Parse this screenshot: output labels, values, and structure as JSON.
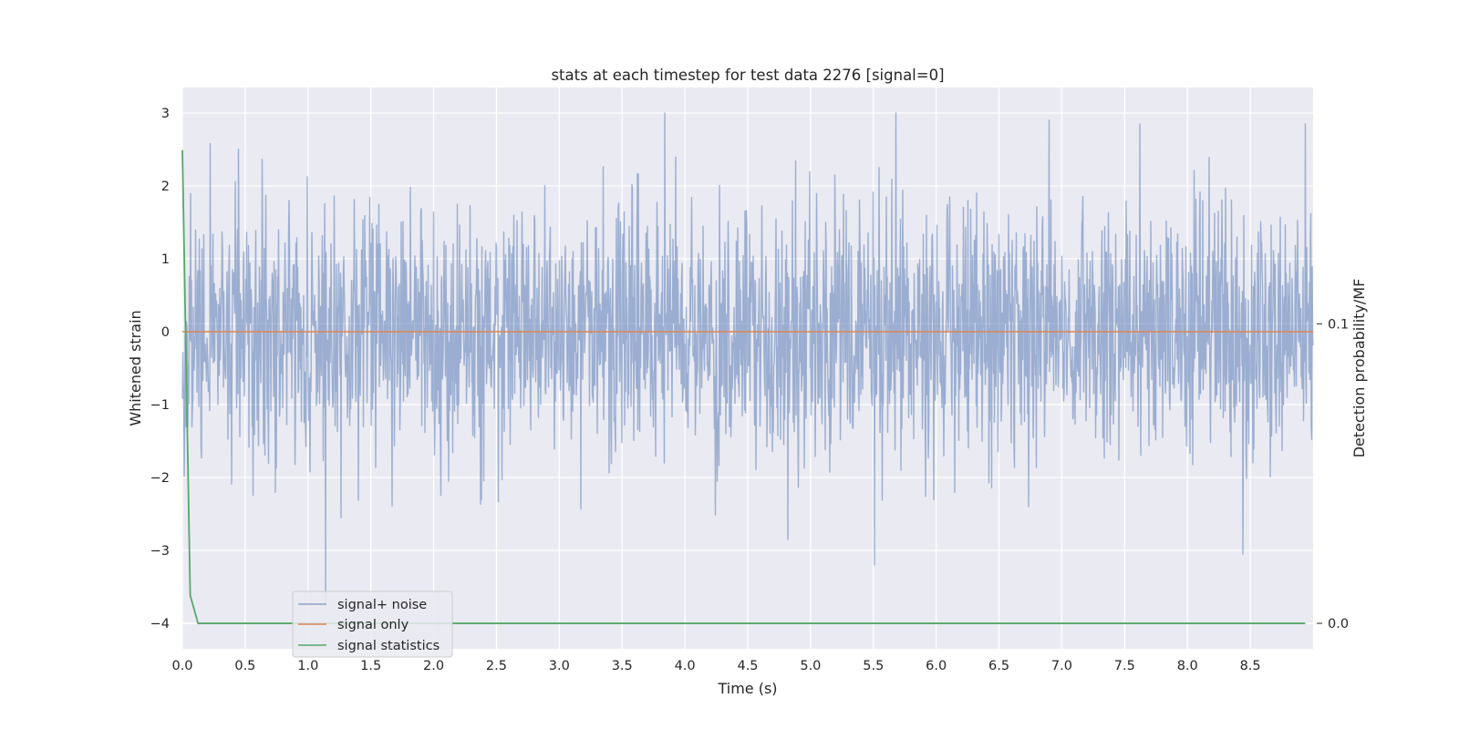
{
  "chart_data": {
    "type": "line",
    "title": "stats at each timestep for test data 2276 [signal=0]",
    "xlabel": "Time (s)",
    "ylabel": "Whitened strain",
    "y2label": "Detection probability/MF",
    "xlim": [
      0.0,
      9.0
    ],
    "ylim": [
      -4.35,
      3.35
    ],
    "y2lim": [
      -0.0085,
      0.1789
    ],
    "x_ticks": [
      "0.0",
      "0.5",
      "1.0",
      "1.5",
      "2.0",
      "2.5",
      "3.0",
      "3.5",
      "4.0",
      "4.5",
      "5.0",
      "5.5",
      "6.0",
      "6.5",
      "7.0",
      "7.5",
      "8.0",
      "8.5"
    ],
    "y_ticks": [
      "3",
      "2",
      "1",
      "0",
      "−1",
      "−2",
      "−3",
      "−4"
    ],
    "y2_ticks": [
      "0.1",
      "0.0"
    ],
    "grid": true,
    "legend_position": "lower left",
    "noise_series": {
      "name": "signal+ noise",
      "color": "#4c72b0",
      "opacity": 0.5,
      "t_start": 0.0,
      "t_end": 9.0,
      "sigma": 0.85,
      "peaks": [
        {
          "x": 1.14,
          "y": -3.7
        },
        {
          "x": 3.84,
          "y": 3.0
        },
        {
          "x": 5.51,
          "y": -3.2
        },
        {
          "x": 5.68,
          "y": 3.0
        },
        {
          "x": 8.44,
          "y": -3.05
        },
        {
          "x": 8.94,
          "y": 2.85
        },
        {
          "x": 4.82,
          "y": -2.85
        },
        {
          "x": 7.62,
          "y": 2.85
        },
        {
          "x": 6.9,
          "y": 2.9
        }
      ]
    },
    "series": [
      {
        "name": "signal only",
        "color": "#dd8452",
        "x": [
          0.0,
          9.0
        ],
        "y": [
          0.0,
          0.0
        ]
      },
      {
        "name": "signal statistics",
        "color": "#55a868",
        "axis": "right",
        "x": [
          0.0,
          0.0625,
          0.125,
          0.5,
          1.0,
          2.0,
          3.0,
          4.0,
          5.0,
          6.0,
          7.0,
          8.0,
          8.9375
        ],
        "y": [
          0.158,
          0.0093,
          0.0,
          0.0,
          0.0,
          0.0,
          0.0,
          0.0,
          0.0,
          0.0,
          0.0,
          0.0,
          0.0
        ]
      }
    ]
  }
}
